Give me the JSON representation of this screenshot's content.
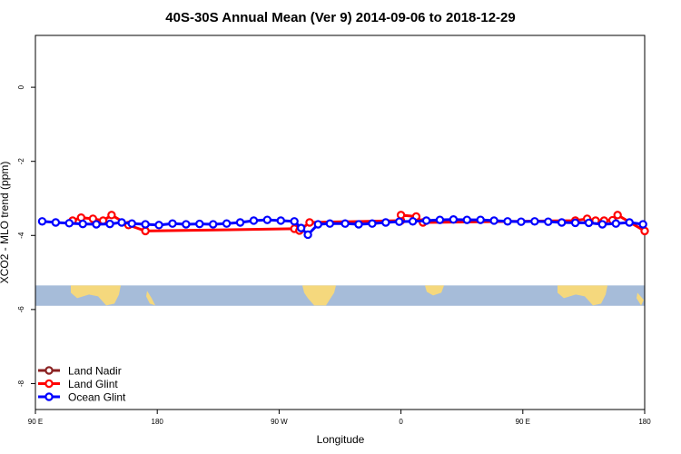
{
  "chart_data": {
    "type": "line",
    "title": "40S-30S Annual Mean (Ver 9)   2014-09-06 to 2018-12-29",
    "xlabel": "Longitude",
    "ylabel": "XCO2 - MLO trend (ppm)",
    "xlim": [
      90,
      450
    ],
    "ylim": [
      -8.7,
      1.4
    ],
    "x_ticks": [
      {
        "value": 90,
        "label": "90 E"
      },
      {
        "value": 162,
        "label": "180"
      },
      {
        "value": 234,
        "label": "90 W"
      },
      {
        "value": 306,
        "label": "0"
      },
      {
        "value": 378,
        "label": "90 E"
      },
      {
        "value": 450,
        "label": "180"
      }
    ],
    "y_ticks": [
      0,
      -2,
      -4,
      -6,
      -8
    ],
    "map_strip": {
      "y_top": -5.35,
      "y_bottom": -5.9,
      "ocean_color": "#a6bcd9",
      "land_color": "#f5d87d"
    },
    "series": [
      {
        "name": "Land Nadir",
        "color": "#8b2222",
        "points": []
      },
      {
        "name": "Land Glint",
        "color": "#ff0000",
        "points": [
          [
            112,
            -3.6
          ],
          [
            117,
            -3.52
          ],
          [
            124,
            -3.55
          ],
          [
            130,
            -3.6
          ],
          [
            135,
            -3.45
          ],
          [
            145,
            -3.72
          ],
          [
            155,
            -3.88
          ],
          [
            243,
            -3.82
          ],
          [
            246,
            -3.87
          ],
          [
            252,
            -3.65
          ],
          [
            306,
            -3.6
          ],
          [
            306,
            -3.45
          ],
          [
            315,
            -3.49
          ],
          [
            319,
            -3.65
          ],
          [
            409,
            -3.6
          ],
          [
            416,
            -3.55
          ],
          [
            421,
            -3.6
          ],
          [
            426,
            -3.6
          ],
          [
            431,
            -3.59
          ],
          [
            434,
            -3.45
          ],
          [
            450,
            -3.88
          ]
        ]
      },
      {
        "name": "Ocean Glint",
        "color": "#0000ff",
        "points": [
          [
            94,
            -3.62
          ],
          [
            102,
            -3.65
          ],
          [
            110,
            -3.67
          ],
          [
            118,
            -3.69
          ],
          [
            126,
            -3.7
          ],
          [
            134,
            -3.69
          ],
          [
            141,
            -3.65
          ],
          [
            147,
            -3.68
          ],
          [
            155,
            -3.7
          ],
          [
            163,
            -3.72
          ],
          [
            171,
            -3.68
          ],
          [
            179,
            -3.7
          ],
          [
            187,
            -3.69
          ],
          [
            195,
            -3.7
          ],
          [
            203,
            -3.68
          ],
          [
            211,
            -3.65
          ],
          [
            219,
            -3.6
          ],
          [
            227,
            -3.58
          ],
          [
            235,
            -3.6
          ],
          [
            243,
            -3.62
          ],
          [
            247,
            -3.8
          ],
          [
            251,
            -3.98
          ],
          [
            257,
            -3.7
          ],
          [
            264,
            -3.68
          ],
          [
            273,
            -3.68
          ],
          [
            281,
            -3.7
          ],
          [
            289,
            -3.68
          ],
          [
            297,
            -3.65
          ],
          [
            305,
            -3.63
          ],
          [
            313,
            -3.62
          ],
          [
            321,
            -3.6
          ],
          [
            329,
            -3.58
          ],
          [
            337,
            -3.57
          ],
          [
            345,
            -3.58
          ],
          [
            353,
            -3.58
          ],
          [
            361,
            -3.6
          ],
          [
            369,
            -3.62
          ],
          [
            377,
            -3.63
          ],
          [
            385,
            -3.62
          ],
          [
            393,
            -3.63
          ],
          [
            401,
            -3.65
          ],
          [
            409,
            -3.66
          ],
          [
            417,
            -3.66
          ],
          [
            425,
            -3.7
          ],
          [
            433,
            -3.68
          ],
          [
            441,
            -3.65
          ],
          [
            449,
            -3.7
          ]
        ]
      }
    ],
    "legend_position": "bottom-left"
  }
}
